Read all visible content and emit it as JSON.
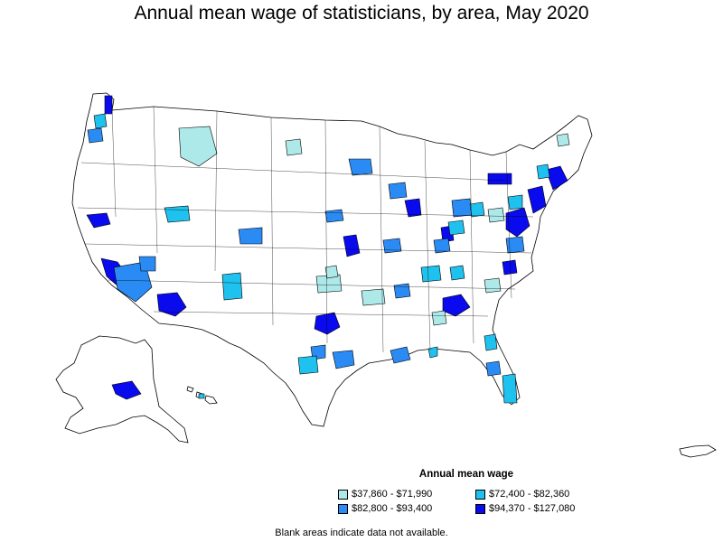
{
  "title": "Annual mean wage of statisticians, by area, May 2020",
  "legend": {
    "title": "Annual mean wage",
    "items": [
      {
        "label": "$37,860 - $71,990",
        "color": "#aee9ea"
      },
      {
        "label": "$72,400 - $82,360",
        "color": "#1fc1ee"
      },
      {
        "label": "$82,800 - $93,400",
        "color": "#2b8bf5"
      },
      {
        "label": "$94,370 - $127,080",
        "color": "#0a0aee"
      }
    ]
  },
  "footnote": "Blank areas indicate data not available.",
  "map": {
    "region": "United States (including Alaska, Hawaii, Puerto Rico)",
    "boundary_color": "#000000",
    "blank_color": "#ffffff"
  }
}
